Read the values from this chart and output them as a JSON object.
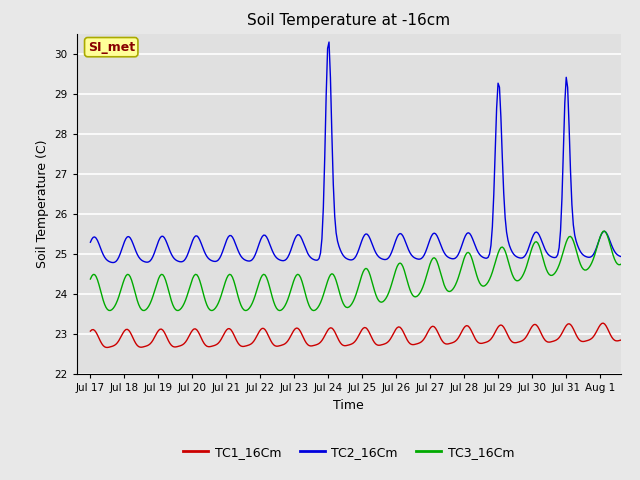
{
  "title": "Soil Temperature at -16cm",
  "xlabel": "Time",
  "ylabel": "Soil Temperature (C)",
  "ylim": [
    22.0,
    30.5
  ],
  "yticks": [
    22.0,
    23.0,
    24.0,
    25.0,
    26.0,
    27.0,
    28.0,
    29.0,
    30.0
  ],
  "background_color": "#e8e8e8",
  "plot_bg_color": "#e0e0e0",
  "grid_color": "#ffffff",
  "legend_bg": "#ffffff",
  "annotation_text": "SI_met",
  "annotation_bg": "#ffff99",
  "annotation_border": "#aaaa00",
  "line_colors": {
    "TC1_16Cm": "#cc0000",
    "TC2_16Cm": "#0000dd",
    "TC3_16Cm": "#00aa00"
  },
  "legend_labels": [
    "TC1_16Cm",
    "TC2_16Cm",
    "TC3_16Cm"
  ],
  "xtick_labels": [
    "Jul 17",
    "Jul 18",
    "Jul 19",
    "Jul 20",
    "Jul 21",
    "Jul 22",
    "Jul 23",
    "Jul 24",
    "Jul 25",
    "Jul 26",
    "Jul 27",
    "Jul 28",
    "Jul 29",
    "Jul 30",
    "Jul 31",
    "Aug 1"
  ]
}
